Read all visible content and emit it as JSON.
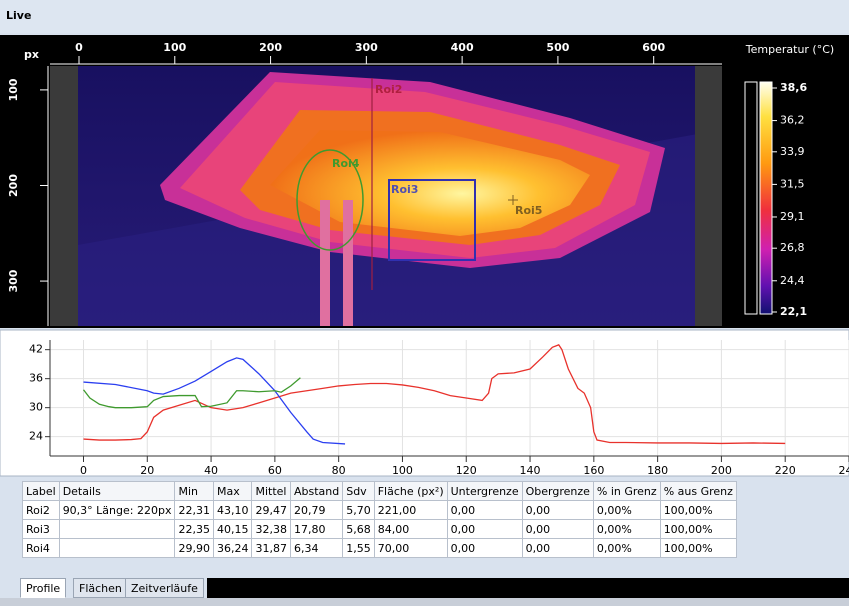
{
  "window": {
    "title": "Live"
  },
  "image": {
    "axis_label": "px",
    "xlim": [
      0,
      640
    ],
    "ylim": [
      75,
      347
    ],
    "xticks": [
      0,
      100,
      200,
      300,
      400,
      500,
      600
    ],
    "yticks": [
      100,
      200,
      300
    ],
    "rois": [
      "Roi2",
      "Roi4",
      "Roi3",
      "Roi5"
    ]
  },
  "colorbar": {
    "title": "Temperatur (°C)",
    "lim": [
      22.1,
      38.6
    ],
    "ticks": [
      {
        "value": 38.6,
        "label": "38,6"
      },
      {
        "value": 36.2,
        "label": "36,2"
      },
      {
        "value": 33.9,
        "label": "33,9"
      },
      {
        "value": 31.5,
        "label": "31,5"
      },
      {
        "value": 29.1,
        "label": "29,1"
      },
      {
        "value": 26.8,
        "label": "26,8"
      },
      {
        "value": 24.4,
        "label": "24,4"
      },
      {
        "value": 22.1,
        "label": "22,1"
      }
    ]
  },
  "chart_data": {
    "type": "line",
    "xlim": [
      -10.5,
      240
    ],
    "ylim": [
      20,
      44
    ],
    "xticks": [
      0,
      20,
      40,
      60,
      80,
      100,
      120,
      140,
      160,
      180,
      200,
      220,
      240
    ],
    "yticks": [
      24,
      30,
      36,
      42
    ],
    "grid": true,
    "series": [
      {
        "color": "#e8322c",
        "x": [
          0,
          5,
          10,
          15,
          18,
          20,
          22,
          25,
          30,
          35,
          40,
          45,
          50,
          55,
          60,
          65,
          70,
          75,
          80,
          85,
          90,
          95,
          100,
          105,
          110,
          115,
          120,
          125,
          127,
          128,
          130,
          135,
          140,
          144,
          147,
          149,
          150,
          152,
          155,
          157,
          159,
          160,
          161,
          165,
          170,
          180,
          190,
          200,
          210,
          220
        ],
        "values": [
          23.5,
          23.3,
          23.3,
          23.4,
          23.6,
          25,
          28,
          29.5,
          30.5,
          31.5,
          30,
          29.5,
          30,
          31,
          32,
          33,
          33.5,
          34,
          34.5,
          34.8,
          35,
          35,
          34.7,
          34.2,
          33.5,
          32.5,
          32,
          31.5,
          33,
          36,
          37,
          37.2,
          38,
          40.5,
          42.5,
          43,
          42,
          38,
          34,
          33,
          30,
          25,
          23.3,
          22.8,
          22.8,
          22.7,
          22.7,
          22.6,
          22.7,
          22.6
        ]
      },
      {
        "color": "#2b3ff0",
        "x": [
          0,
          10,
          20,
          22,
          25,
          30,
          35,
          40,
          45,
          48,
          50,
          55,
          60,
          65,
          70,
          72,
          75,
          82
        ],
        "values": [
          35.3,
          34.8,
          33.5,
          33,
          32.8,
          34,
          35.5,
          37.5,
          39.5,
          40.3,
          40,
          37,
          33.5,
          29,
          25,
          23.5,
          22.8,
          22.5
        ]
      },
      {
        "color": "#3f9a2e",
        "x": [
          0,
          2,
          5,
          8,
          10,
          15,
          20,
          22,
          25,
          30,
          35,
          37,
          40,
          45,
          48,
          50,
          55,
          60,
          62,
          65,
          68
        ],
        "values": [
          33.7,
          32,
          30.7,
          30.2,
          30,
          30,
          30.2,
          31.5,
          32.3,
          32.5,
          32.5,
          30.2,
          30.3,
          31,
          33.5,
          33.5,
          33.3,
          33.5,
          33.2,
          34.5,
          36.2
        ]
      }
    ]
  },
  "table": {
    "columns": [
      "Label",
      "Details",
      "Min",
      "Max",
      "Mittel",
      "Abstand",
      "Sdv",
      "Fläche (px²)",
      "Untergrenze",
      "Obergrenze",
      "% in Grenz",
      "% aus Grenz"
    ],
    "rows": [
      [
        "Roi2",
        "90,3° Länge: 220px",
        "22,31",
        "43,10",
        "29,47",
        "20,79",
        "5,70",
        "221,00",
        "0,00",
        "0,00",
        "0,00%",
        "100,00%"
      ],
      [
        "Roi3",
        "",
        "22,35",
        "40,15",
        "32,38",
        "17,80",
        "5,68",
        "84,00",
        "0,00",
        "0,00",
        "0,00%",
        "100,00%"
      ],
      [
        "Roi4",
        "",
        "29,90",
        "36,24",
        "31,87",
        "6,34",
        "1,55",
        "70,00",
        "0,00",
        "0,00",
        "0,00%",
        "100,00%"
      ]
    ]
  },
  "tabs": [
    "Profile",
    "Flächen",
    "Zeitverläufe"
  ]
}
